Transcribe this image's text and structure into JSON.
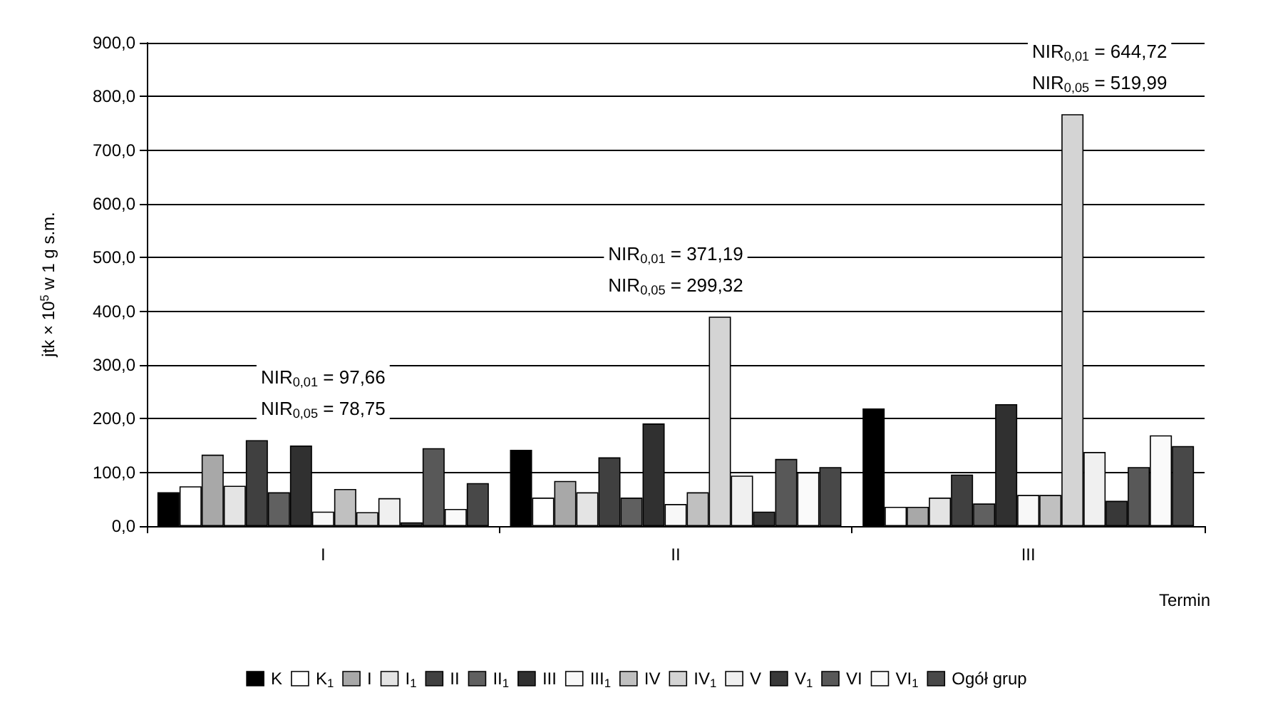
{
  "chart_data": {
    "type": "bar",
    "ylabel": "jtk × 10$^{5}$ w 1 g s.m.",
    "xlabel": "Termin",
    "categories": [
      "I",
      "II",
      "III"
    ],
    "ylim": [
      0,
      900
    ],
    "yticks": [
      {
        "value": 0,
        "label": "0,0"
      },
      {
        "value": 100,
        "label": "100,0"
      },
      {
        "value": 200,
        "label": "200,0"
      },
      {
        "value": 300,
        "label": "300,0"
      },
      {
        "value": 400,
        "label": "400,0"
      },
      {
        "value": 500,
        "label": "500,0"
      },
      {
        "value": 600,
        "label": "600,0"
      },
      {
        "value": 700,
        "label": "700,0"
      },
      {
        "value": 800,
        "label": "800,0"
      },
      {
        "value": 900,
        "label": "900,0"
      }
    ],
    "grid": "y",
    "legend": "bottom",
    "series": [
      {
        "name": "K",
        "color": "#000000",
        "values": [
          63,
          142,
          219
        ]
      },
      {
        "name": "K$_{1}$",
        "color": "#ffffff",
        "values": [
          74,
          53,
          36
        ]
      },
      {
        "name": "I",
        "color": "#a8a8a8",
        "values": [
          133,
          84,
          36
        ]
      },
      {
        "name": "I$_{1}$",
        "color": "#e4e4e4",
        "values": [
          75,
          63,
          53
        ]
      },
      {
        "name": "II",
        "color": "#404040",
        "values": [
          160,
          128,
          96
        ]
      },
      {
        "name": "II$_{1}$",
        "color": "#606060",
        "values": [
          63,
          53,
          42
        ]
      },
      {
        "name": "III",
        "color": "#303030",
        "values": [
          150,
          191,
          227
        ]
      },
      {
        "name": "III$_{1}$",
        "color": "#f8f8f8",
        "values": [
          27,
          41,
          58
        ]
      },
      {
        "name": "IV",
        "color": "#c0c0c0",
        "values": [
          69,
          63,
          58
        ]
      },
      {
        "name": "IV$_{1}$",
        "color": "#d4d4d4",
        "values": [
          26,
          390,
          767
        ]
      },
      {
        "name": "V",
        "color": "#f0f0f0",
        "values": [
          52,
          94,
          138
        ]
      },
      {
        "name": "V$_{1}$",
        "color": "#383838",
        "values": [
          7,
          27,
          47
        ]
      },
      {
        "name": "VI",
        "color": "#585858",
        "values": [
          145,
          125,
          110
        ]
      },
      {
        "name": "VI$_{1}$",
        "color": "#fafafa",
        "values": [
          32,
          100,
          169
        ]
      },
      {
        "name": "Ogół grup",
        "color": "#484848",
        "values": [
          80,
          110,
          149
        ]
      }
    ],
    "annotations": [
      "NIR$_{0,01}$ = 97,66",
      "NIR$_{0,05}$ = 78,75",
      "NIR$_{0,01}$ = 371,19",
      "NIR$_{0,05}$ = 299,32",
      "NIR$_{0,01}$ = 644,72",
      "NIR$_{0,05}$ = 519,99"
    ]
  }
}
